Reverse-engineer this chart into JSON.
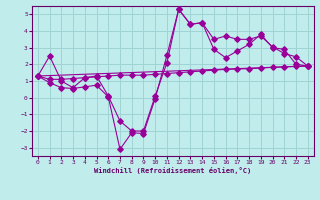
{
  "xlabel": "Windchill (Refroidissement éolien,°C)",
  "background_color": "#c0ecec",
  "grid_color": "#a0d4d4",
  "line_color": "#990099",
  "spine_color": "#660066",
  "tick_color": "#660066",
  "xlim": [
    -0.5,
    23.5
  ],
  "ylim": [
    -3.5,
    5.5
  ],
  "yticks": [
    -3,
    -2,
    -1,
    0,
    1,
    2,
    3,
    4,
    5
  ],
  "xticks": [
    0,
    1,
    2,
    3,
    4,
    5,
    6,
    7,
    8,
    9,
    10,
    11,
    12,
    13,
    14,
    15,
    16,
    17,
    18,
    19,
    20,
    21,
    22,
    23
  ],
  "line1": {
    "x": [
      0,
      1,
      2,
      3,
      4,
      5,
      6,
      7,
      8,
      9,
      10,
      11,
      12,
      13,
      14,
      15,
      16,
      17,
      18,
      19,
      20,
      21,
      22,
      23
    ],
    "y": [
      1.3,
      2.5,
      1.0,
      0.6,
      1.2,
      1.3,
      0.1,
      -1.4,
      -2.0,
      -2.0,
      0.1,
      2.1,
      5.3,
      4.4,
      4.5,
      2.9,
      2.4,
      2.8,
      3.2,
      3.8,
      3.0,
      2.9,
      2.0,
      1.9
    ]
  },
  "line2": {
    "x": [
      0,
      1,
      2,
      3,
      4,
      5,
      6,
      7,
      8,
      9,
      10,
      11,
      12,
      13,
      14,
      15,
      16,
      17,
      18,
      19,
      20,
      21,
      22,
      23
    ],
    "y": [
      1.3,
      0.9,
      0.6,
      0.55,
      0.65,
      0.75,
      0.05,
      -3.1,
      -2.1,
      -2.15,
      -0.05,
      2.55,
      5.3,
      4.4,
      4.5,
      3.5,
      3.7,
      3.5,
      3.5,
      3.7,
      3.05,
      2.65,
      2.45,
      1.9
    ]
  },
  "line3_straight": {
    "x": [
      0,
      23
    ],
    "y": [
      1.3,
      1.9
    ]
  },
  "line4_smooth": {
    "x": [
      0,
      1,
      2,
      3,
      4,
      5,
      6,
      7,
      8,
      9,
      10,
      11,
      12,
      13,
      14,
      15,
      16,
      17,
      18,
      19,
      20,
      21,
      22,
      23
    ],
    "y": [
      1.3,
      1.1,
      1.1,
      1.15,
      1.2,
      1.25,
      1.3,
      1.35,
      1.35,
      1.35,
      1.4,
      1.45,
      1.5,
      1.55,
      1.6,
      1.65,
      1.7,
      1.72,
      1.74,
      1.78,
      1.82,
      1.85,
      1.88,
      1.9
    ]
  }
}
